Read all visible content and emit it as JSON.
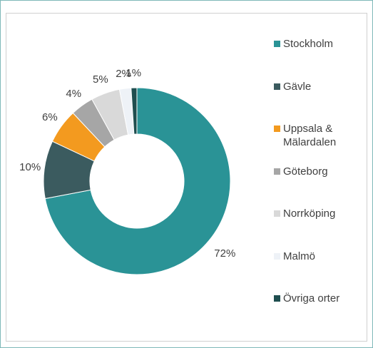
{
  "chart_data": {
    "type": "donut",
    "categories": [
      "Stockholm",
      "Gävle",
      "Uppsala & Mälardalen",
      "Göteborg",
      "Norrköping",
      "Malmö",
      "Övriga orter"
    ],
    "values": [
      72,
      10,
      6,
      4,
      5,
      2,
      1
    ],
    "value_labels": [
      "72%",
      "10%",
      "6%",
      "4%",
      "5%",
      "2%",
      "1%"
    ],
    "colors": [
      "#2a9396",
      "#3b5b5f",
      "#f39a1f",
      "#a6a6a6",
      "#d9d9d9",
      "#eef2f7",
      "#1f4e4f"
    ],
    "legend": "right"
  }
}
